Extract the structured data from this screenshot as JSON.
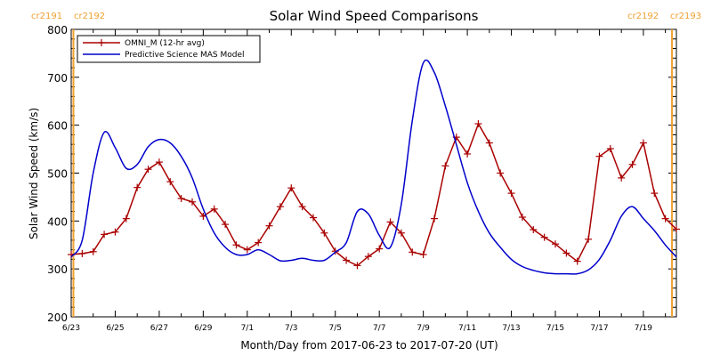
{
  "chart_data": {
    "type": "line",
    "title": "Solar Wind Speed Comparisons",
    "xlabel": "Month/Day from 2017-06-23 to 2017-07-20 (UT)",
    "ylabel": "Solar Wind Speed (km/s)",
    "ylim": [
      200,
      800
    ],
    "yticks": [
      200,
      300,
      400,
      500,
      600,
      700,
      800
    ],
    "xlim": [
      0,
      27.5
    ],
    "xticks": [
      {
        "x": 0,
        "label": "6/23"
      },
      {
        "x": 2,
        "label": "6/25"
      },
      {
        "x": 4,
        "label": "6/27"
      },
      {
        "x": 6,
        "label": "6/29"
      },
      {
        "x": 8,
        "label": "7/1"
      },
      {
        "x": 10,
        "label": "7/3"
      },
      {
        "x": 12,
        "label": "7/5"
      },
      {
        "x": 14,
        "label": "7/7"
      },
      {
        "x": 16,
        "label": "7/9"
      },
      {
        "x": 18,
        "label": "7/11"
      },
      {
        "x": 20,
        "label": "7/13"
      },
      {
        "x": 22,
        "label": "7/15"
      },
      {
        "x": 24,
        "label": "7/17"
      },
      {
        "x": 26,
        "label": "7/19"
      }
    ],
    "rotation_markers": [
      {
        "x": 0.1,
        "left_label": "cr2191",
        "right_label": "cr2192"
      },
      {
        "x": 27.3,
        "left_label": "cr2192",
        "right_label": "cr2193"
      }
    ],
    "legend_position": "top-left",
    "series": [
      {
        "name": "OMNI_M (12-hr avg)",
        "color": "#aa0000",
        "marker": "plus",
        "x": [
          0,
          0.5,
          1,
          1.5,
          2,
          2.5,
          3,
          3.5,
          4,
          4.5,
          5,
          5.5,
          6,
          6.5,
          7,
          7.5,
          8,
          8.5,
          9,
          9.5,
          10,
          10.5,
          11,
          11.5,
          12,
          12.5,
          13,
          13.5,
          14,
          14.5,
          15,
          15.5,
          16,
          16.5,
          17,
          17.5,
          18,
          18.5,
          19,
          19.5,
          20,
          20.5,
          21,
          21.5,
          22,
          22.5,
          23,
          23.5,
          24,
          24.5,
          25,
          25.5,
          26,
          26.5,
          27,
          27.5
        ],
        "values": [
          330,
          332,
          336,
          372,
          377,
          405,
          470,
          508,
          523,
          482,
          447,
          440,
          410,
          425,
          393,
          350,
          340,
          355,
          390,
          430,
          469,
          430,
          407,
          375,
          337,
          318,
          307,
          326,
          342,
          398,
          375,
          335,
          330,
          405,
          515,
          575,
          540,
          603,
          563,
          500,
          458,
          408,
          382,
          366,
          352,
          333,
          316,
          362,
          535,
          551,
          490,
          518,
          563,
          458,
          405,
          383
        ]
      },
      {
        "name": "Predictive Science MAS Model",
        "color": "#0000cc",
        "marker": "none",
        "x": [
          0,
          0.5,
          1,
          1.5,
          2,
          2.5,
          3,
          3.5,
          4,
          4.5,
          5,
          5.5,
          6,
          6.5,
          7,
          7.5,
          8,
          8.5,
          9,
          9.5,
          10,
          10.5,
          11,
          11.5,
          12,
          12.5,
          13,
          13.5,
          14,
          14.5,
          15,
          15.5,
          16,
          16.5,
          17,
          17.5,
          18,
          18.5,
          19,
          19.5,
          20,
          20.5,
          21,
          21.5,
          22,
          22.5,
          23,
          23.5,
          24,
          24.5,
          25,
          25.5,
          26,
          26.5,
          27,
          27.5
        ],
        "values": [
          325,
          360,
          500,
          585,
          553,
          510,
          518,
          555,
          570,
          563,
          535,
          490,
          425,
          375,
          345,
          330,
          330,
          340,
          330,
          317,
          318,
          322,
          318,
          318,
          335,
          355,
          420,
          415,
          370,
          345,
          435,
          610,
          730,
          710,
          640,
          560,
          480,
          420,
          375,
          345,
          320,
          305,
          297,
          292,
          290,
          290,
          290,
          298,
          320,
          360,
          410,
          430,
          405,
          380,
          350,
          325
        ]
      }
    ]
  }
}
